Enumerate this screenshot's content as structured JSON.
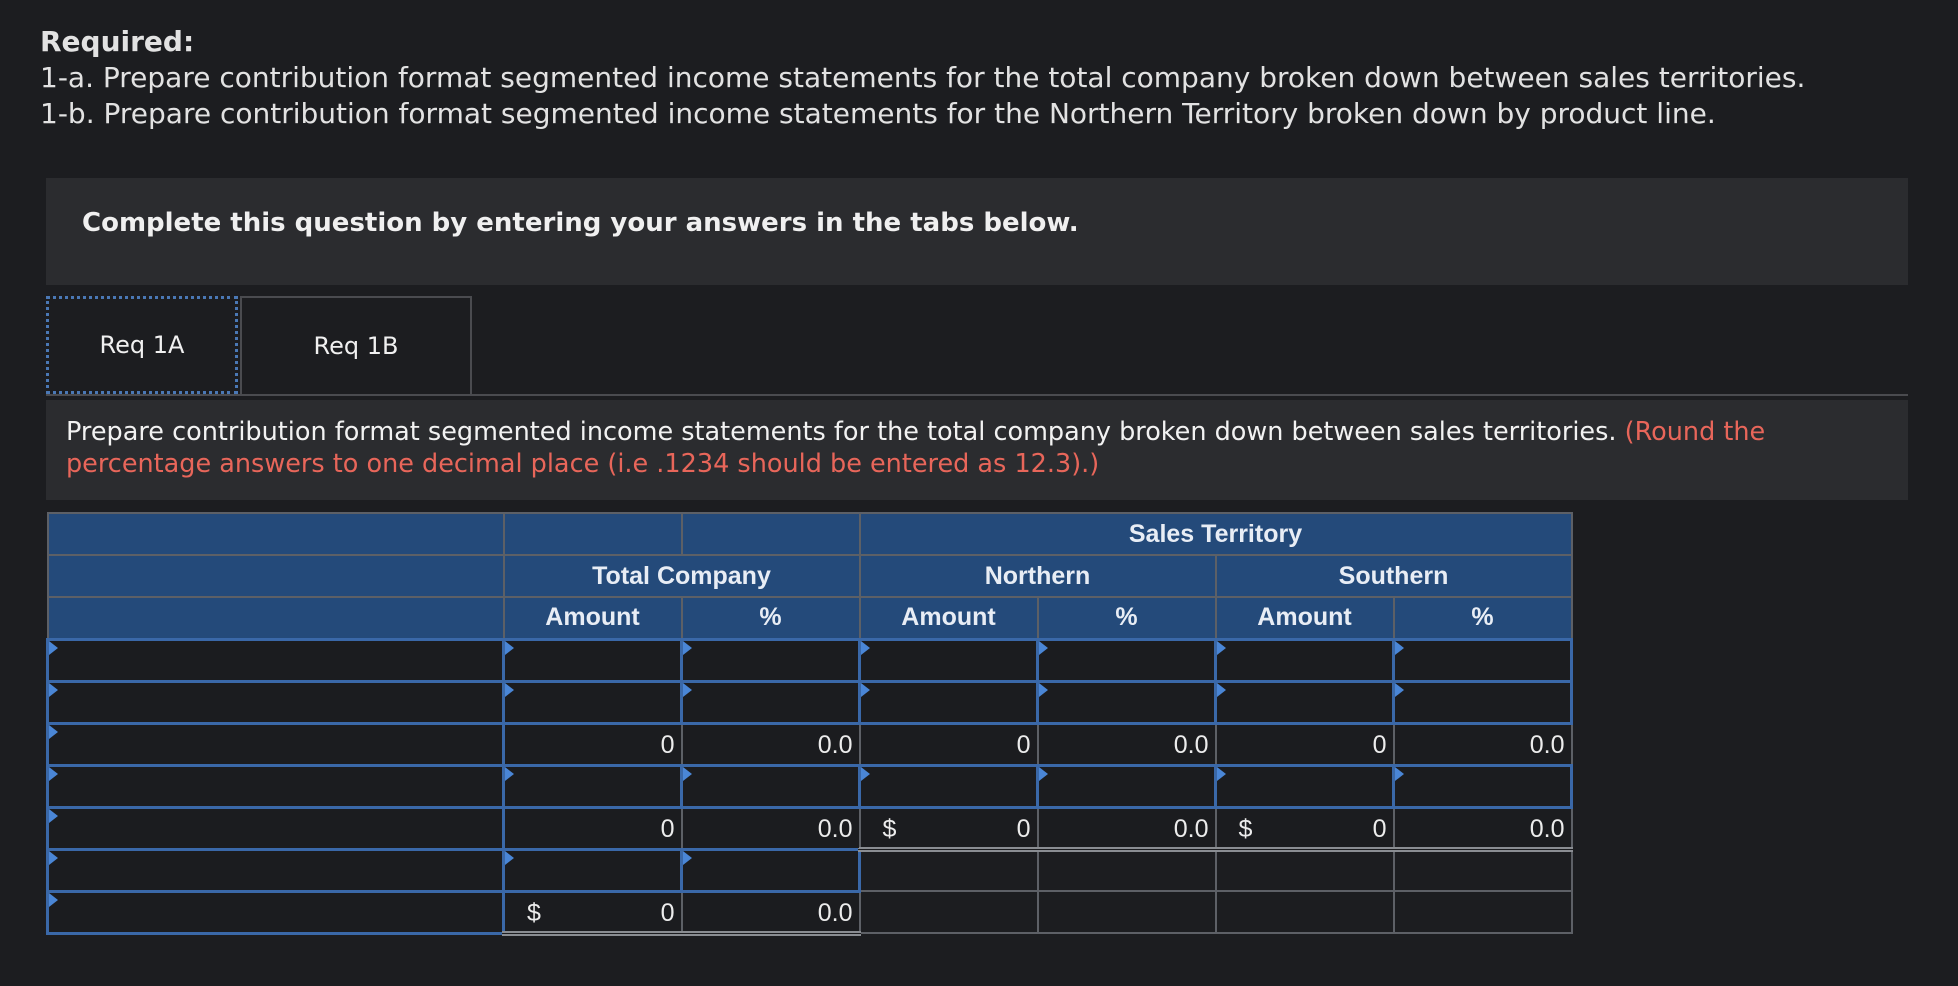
{
  "required": {
    "title": "Required:",
    "line1": "1-a. Prepare contribution format segmented income statements for the total company broken down between sales territories.",
    "line2": "1-b. Prepare contribution format segmented income statements for the Northern Territory broken down by product line."
  },
  "instruction": "Complete this question by entering your answers in the tabs below.",
  "tabs": [
    {
      "label": "Req 1A",
      "active": true
    },
    {
      "label": "Req 1B",
      "active": false
    }
  ],
  "prompt": {
    "text": "Prepare contribution format segmented income statements for the total company broken down between sales territories.",
    "note": "(Round the percentage answers to one decimal place (i.e .1234 should be entered as 12.3).)"
  },
  "table": {
    "group_header": "Sales Territory",
    "segments": [
      "Total Company",
      "Northern",
      "Southern"
    ],
    "col_amount": "Amount",
    "col_pct": "%",
    "currency": "$",
    "zero_amount": "0",
    "zero_pct": "0.0"
  },
  "colors": {
    "header_bg": "#244a7a",
    "input_border": "#3a68a8",
    "note_red": "#e8665a"
  }
}
